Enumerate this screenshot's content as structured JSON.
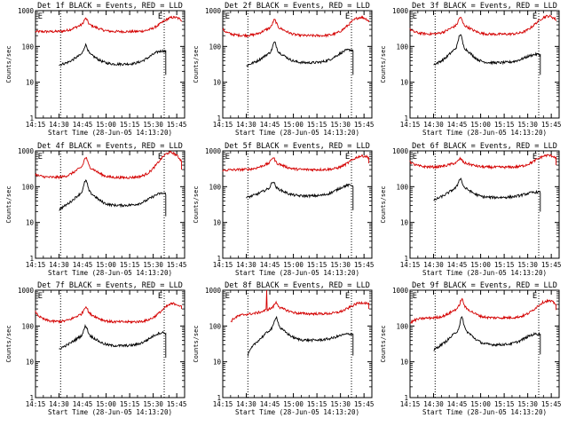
{
  "chart_data": [
    {
      "type": "line",
      "title": "Det 1f BLACK = Events, RED = LLD",
      "xlabel": "Start Time (28-Jun-05 14:13:20)",
      "ylabel": "Counts/sec",
      "xlim": [
        "14:15",
        "15:50"
      ],
      "ylim": [
        1,
        1000
      ],
      "yscale": "log",
      "xticks": [
        "14:15",
        "14:30",
        "14:45",
        "15:00",
        "15:15",
        "15:30",
        "15:45"
      ],
      "yticks": [
        "1",
        "10",
        "100",
        "1000"
      ],
      "markers": [
        "E",
        "E"
      ],
      "vlines": [
        "14:31",
        "15:37"
      ],
      "series": [
        {
          "name": "RED = LLD",
          "color": "#d40000",
          "start": "14:15",
          "end": "15:48",
          "base": 260,
          "start_val": 260,
          "flare_at": "14:47",
          "flare_peak": 600,
          "end_peak_at": "15:43",
          "end_peak": 650,
          "end_val": 520
        },
        {
          "name": "BLACK = Events",
          "color": "#000000",
          "start": "14:30",
          "end": "15:38",
          "base": 32,
          "start_val": 30,
          "flare_at": "14:47",
          "flare_peak": 110,
          "end_peak_at": "15:36",
          "end_peak": 75,
          "end_val": 16
        }
      ]
    },
    {
      "type": "line",
      "title": "Det 2f BLACK = Events, RED = LLD",
      "xlabel": "Start Time (28-Jun-05 14:13:20)",
      "ylabel": "Counts/sec",
      "xlim": [
        "14:15",
        "15:50"
      ],
      "ylim": [
        1,
        1000
      ],
      "yscale": "log",
      "xticks": [
        "14:15",
        "14:30",
        "14:45",
        "15:00",
        "15:15",
        "15:30",
        "15:45"
      ],
      "yticks": [
        "1",
        "10",
        "100",
        "1000"
      ],
      "markers": [
        "E",
        "E"
      ],
      "vlines": [
        "14:31",
        "15:37"
      ],
      "series": [
        {
          "name": "RED = LLD",
          "color": "#d40000",
          "start": "14:15",
          "end": "15:48",
          "base": 200,
          "start_val": 300,
          "flare_at": "14:48",
          "flare_peak": 550,
          "end_peak_at": "15:43",
          "end_peak": 650,
          "end_val": 480
        },
        {
          "name": "BLACK = Events",
          "color": "#000000",
          "start": "14:30",
          "end": "15:38",
          "base": 35,
          "start_val": 28,
          "flare_at": "14:48",
          "flare_peak": 130,
          "end_peak_at": "15:36",
          "end_peak": 80,
          "end_val": 16
        }
      ]
    },
    {
      "type": "line",
      "title": "Det 3f BLACK = Events, RED = LLD",
      "xlabel": "Start Time (28-Jun-05 14:13:20)",
      "ylabel": "Counts/sec",
      "xlim": [
        "14:15",
        "15:50"
      ],
      "ylim": [
        1,
        1000
      ],
      "yscale": "log",
      "xticks": [
        "14:15",
        "14:30",
        "14:45",
        "15:00",
        "15:15",
        "15:30",
        "15:45"
      ],
      "yticks": [
        "1",
        "10",
        "100",
        "1000"
      ],
      "markers": [
        "E",
        "E"
      ],
      "vlines": [
        "14:31",
        "15:37"
      ],
      "series": [
        {
          "name": "RED = LLD",
          "color": "#d40000",
          "start": "14:15",
          "end": "15:48",
          "base": 220,
          "start_val": 300,
          "flare_at": "14:47",
          "flare_peak": 650,
          "end_peak_at": "15:43",
          "end_peak": 700,
          "end_val": 520
        },
        {
          "name": "BLACK = Events",
          "color": "#000000",
          "start": "14:30",
          "end": "15:38",
          "base": 35,
          "start_val": 30,
          "flare_at": "14:47",
          "flare_peak": 220,
          "end_peak_at": "15:36",
          "end_peak": 60,
          "end_val": 16
        }
      ]
    },
    {
      "type": "line",
      "title": "Det 4f BLACK = Events, RED = LLD",
      "xlabel": "Start Time (28-Jun-05 14:13:20)",
      "ylabel": "Counts/sec",
      "xlim": [
        "14:15",
        "15:50"
      ],
      "ylim": [
        1,
        1000
      ],
      "yscale": "log",
      "xticks": [
        "14:15",
        "14:30",
        "14:45",
        "15:00",
        "15:15",
        "15:30",
        "15:45"
      ],
      "yticks": [
        "1",
        "10",
        "100",
        "1000"
      ],
      "markers": [
        "E",
        "E"
      ],
      "vlines": [
        "14:31",
        "15:37"
      ],
      "series": [
        {
          "name": "RED = LLD",
          "color": "#d40000",
          "start": "14:15",
          "end": "15:48",
          "base": 180,
          "start_val": 220,
          "flare_at": "14:47",
          "flare_peak": 650,
          "end_peak_at": "15:41",
          "end_peak": 900,
          "end_val": 300
        },
        {
          "name": "BLACK = Events",
          "color": "#000000",
          "start": "14:30",
          "end": "15:38",
          "base": 30,
          "start_val": 22,
          "flare_at": "14:47",
          "flare_peak": 150,
          "end_peak_at": "15:36",
          "end_peak": 65,
          "end_val": 15
        }
      ]
    },
    {
      "type": "line",
      "title": "Det 5f BLACK = Events, RED = LLD",
      "xlabel": "Start Time (28-Jun-05 14:13:20)",
      "ylabel": "Counts/sec",
      "xlim": [
        "14:15",
        "15:50"
      ],
      "ylim": [
        1,
        1000
      ],
      "yscale": "log",
      "xticks": [
        "14:15",
        "14:30",
        "14:45",
        "15:00",
        "15:15",
        "15:30",
        "15:45"
      ],
      "yticks": [
        "1",
        "10",
        "100",
        "1000"
      ],
      "markers": [
        "E",
        "E"
      ],
      "vlines": [
        "14:31",
        "15:37"
      ],
      "series": [
        {
          "name": "RED = LLD",
          "color": "#d40000",
          "start": "14:15",
          "end": "15:48",
          "base": 300,
          "start_val": 280,
          "flare_at": "14:47",
          "flare_peak": 650,
          "end_peak_at": "15:44",
          "end_peak": 720,
          "end_val": 450
        },
        {
          "name": "BLACK = Events",
          "color": "#000000",
          "start": "14:30",
          "end": "15:38",
          "base": 55,
          "start_val": 48,
          "flare_at": "14:47",
          "flare_peak": 140,
          "end_peak_at": "15:36",
          "end_peak": 110,
          "end_val": 22
        }
      ]
    },
    {
      "type": "line",
      "title": "Det 6f BLACK = Events, RED = LLD",
      "xlabel": "Start Time (28-Jun-05 14:13:20)",
      "ylabel": "Counts/sec",
      "xlim": [
        "14:15",
        "15:50"
      ],
      "ylim": [
        1,
        1000
      ],
      "yscale": "log",
      "xticks": [
        "14:15",
        "14:30",
        "14:45",
        "15:00",
        "15:15",
        "15:30",
        "15:45"
      ],
      "yticks": [
        "1",
        "10",
        "100",
        "1000"
      ],
      "markers": [
        "E",
        "E"
      ],
      "vlines": [
        "14:31",
        "15:37"
      ],
      "series": [
        {
          "name": "RED = LLD",
          "color": "#d40000",
          "start": "14:15",
          "end": "15:48",
          "base": 350,
          "start_val": 500,
          "flare_at": "14:47",
          "flare_peak": 600,
          "end_peak_at": "15:43",
          "end_peak": 750,
          "end_val": 400
        },
        {
          "name": "BLACK = Events",
          "color": "#000000",
          "start": "14:30",
          "end": "15:38",
          "base": 50,
          "start_val": 40,
          "flare_at": "14:47",
          "flare_peak": 170,
          "end_peak_at": "15:36",
          "end_peak": 70,
          "end_val": 20
        }
      ]
    },
    {
      "type": "line",
      "title": "Det 7f BLACK = Events, RED = LLD",
      "xlabel": "Start Time (28-Jun-05 14:13:20)",
      "ylabel": "Counts/sec",
      "xlim": [
        "14:15",
        "15:50"
      ],
      "ylim": [
        1,
        1000
      ],
      "yscale": "log",
      "xticks": [
        "14:15",
        "14:30",
        "14:45",
        "15:00",
        "15:15",
        "15:30",
        "15:45"
      ],
      "yticks": [
        "1",
        "10",
        "100",
        "1000"
      ],
      "markers": [
        "E",
        "E"
      ],
      "vlines": [
        "14:31",
        "15:37"
      ],
      "series": [
        {
          "name": "RED = LLD",
          "color": "#d40000",
          "start": "14:15",
          "end": "15:48",
          "base": 130,
          "start_val": 250,
          "flare_at": "14:47",
          "flare_peak": 350,
          "end_peak_at": "15:43",
          "end_peak": 420,
          "end_val": 300
        },
        {
          "name": "BLACK = Events",
          "color": "#000000",
          "start": "14:30",
          "end": "15:38",
          "base": 28,
          "start_val": 22,
          "flare_at": "14:47",
          "flare_peak": 100,
          "end_peak_at": "15:36",
          "end_peak": 65,
          "end_val": 13
        }
      ]
    },
    {
      "type": "line",
      "title": "Det 8f BLACK = Events, RED = LLD",
      "xlabel": "Start Time (28-Jun-05 14:13:20)",
      "ylabel": "Counts/sec",
      "xlim": [
        "14:15",
        "15:50"
      ],
      "ylim": [
        1,
        1000
      ],
      "yscale": "log",
      "xticks": [
        "14:15",
        "14:30",
        "14:45",
        "15:00",
        "15:15",
        "15:30",
        "15:45"
      ],
      "yticks": [
        "1",
        "10",
        "100",
        "1000"
      ],
      "markers": [
        "E",
        "E"
      ],
      "vlines": [
        "14:31",
        "15:37"
      ],
      "series": [
        {
          "name": "RED = LLD",
          "color": "#d40000",
          "start": "14:20",
          "end": "15:48",
          "base": 220,
          "start_val": 130,
          "flare_at": "14:49",
          "flare_peak": 450,
          "end_peak_at": "15:44",
          "end_peak": 450,
          "end_val": 300,
          "spike_at": "14:43",
          "spike_val": 1000
        },
        {
          "name": "BLACK = Events",
          "color": "#000000",
          "start": "14:31",
          "end": "15:38",
          "base": 40,
          "start_val": 15,
          "flare_at": "14:49",
          "flare_peak": 180,
          "end_peak_at": "15:36",
          "end_peak": 60,
          "end_val": 15
        }
      ]
    },
    {
      "type": "line",
      "title": "Det 9f BLACK = Events, RED = LLD",
      "xlabel": "Start Time (28-Jun-05 14:13:20)",
      "ylabel": "Counts/sec",
      "xlim": [
        "14:15",
        "15:50"
      ],
      "ylim": [
        1,
        1000
      ],
      "yscale": "log",
      "xticks": [
        "14:15",
        "14:30",
        "14:45",
        "15:00",
        "15:15",
        "15:30",
        "15:45"
      ],
      "yticks": [
        "1",
        "10",
        "100",
        "1000"
      ],
      "markers": [
        "E",
        "E"
      ],
      "vlines": [
        "14:31",
        "15:37"
      ],
      "series": [
        {
          "name": "RED = LLD",
          "color": "#d40000",
          "start": "14:15",
          "end": "15:48",
          "base": 170,
          "start_val": 120,
          "flare_at": "14:48",
          "flare_peak": 550,
          "end_peak_at": "15:43",
          "end_peak": 500,
          "end_val": 280
        },
        {
          "name": "BLACK = Events",
          "color": "#000000",
          "start": "14:30",
          "end": "15:38",
          "base": 30,
          "start_val": 20,
          "flare_at": "14:48",
          "flare_peak": 170,
          "end_peak_at": "15:36",
          "end_peak": 60,
          "end_val": 16
        }
      ]
    }
  ]
}
